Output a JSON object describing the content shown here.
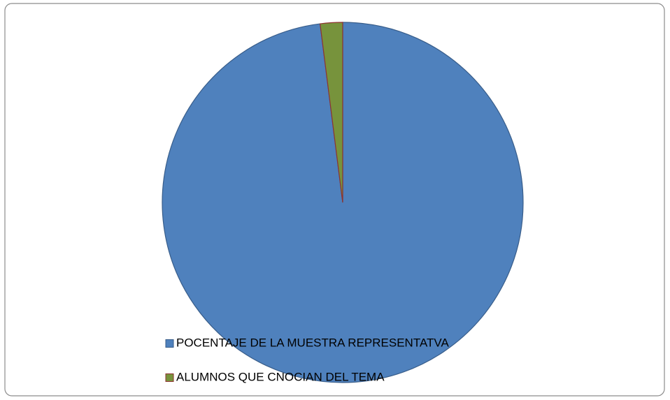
{
  "chart_data": {
    "type": "pie",
    "categories": [
      "POCENTAJE DE LA MUESTRA REPRESENTATVA",
      "ALUMNOS QUE CNOCIAN DEL TEMA"
    ],
    "values": [
      98,
      2
    ],
    "colors": [
      "#4f81bd",
      "#77933c"
    ],
    "edge_colors": [
      "#385d8a",
      "#8e3330"
    ],
    "legend": "bottom"
  }
}
